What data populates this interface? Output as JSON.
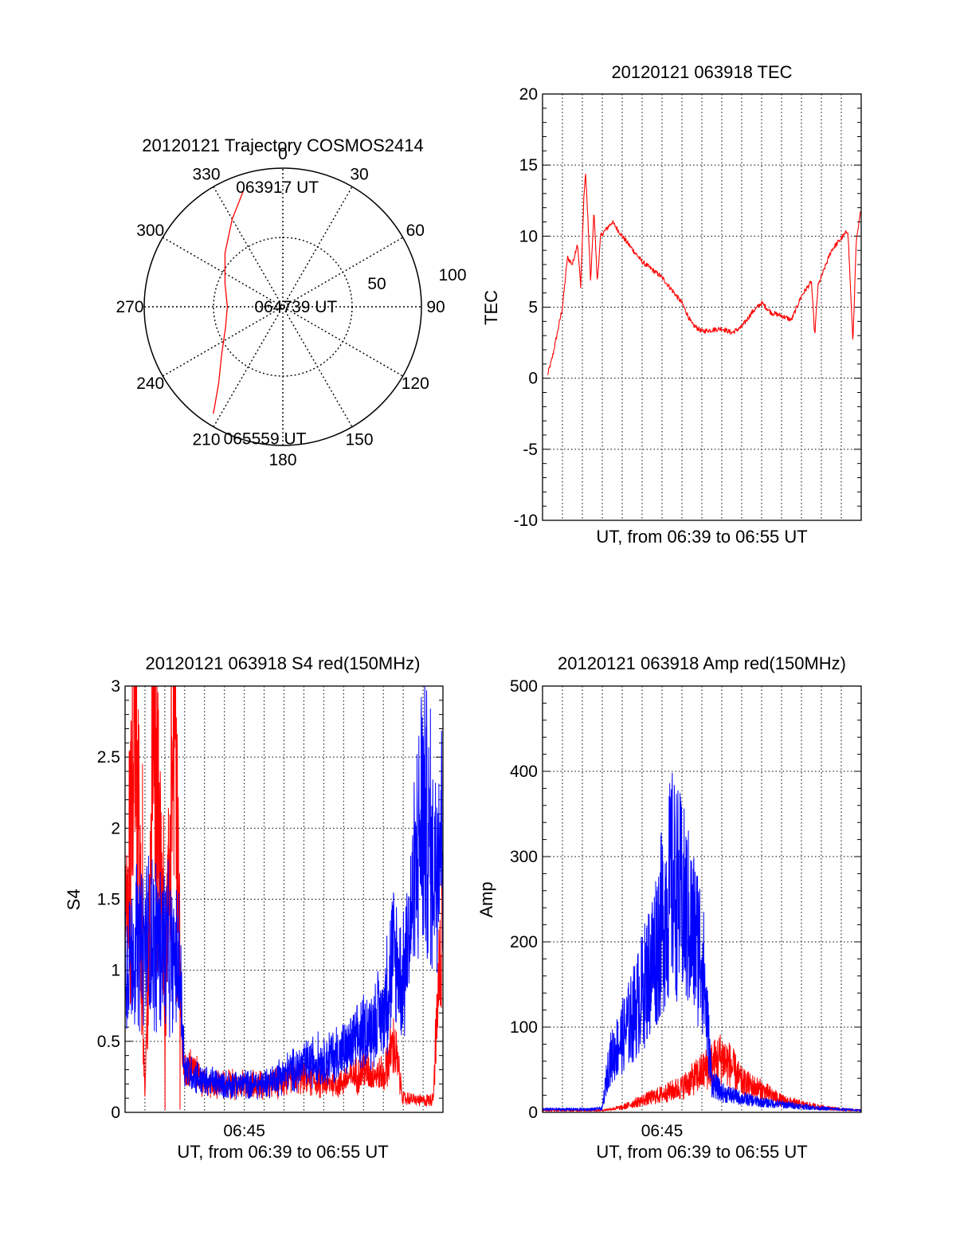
{
  "colors": {
    "red": "#ff0000",
    "blue": "#0000ff",
    "axis": "#000000",
    "grid": "#000000"
  },
  "chart_data": [
    {
      "type": "polar",
      "title": "20120121 Trajectory COSMOS2414",
      "angle_labels": [
        "0",
        "30",
        "60",
        "90",
        "120",
        "150",
        "180",
        "210",
        "240",
        "270",
        "300",
        "330"
      ],
      "radius_labels": [
        "50",
        "100"
      ],
      "radius_max": 100,
      "grid": true,
      "series": [
        {
          "color": "#ff0000",
          "points": [
            {
              "az": 341,
              "r": 88
            },
            {
              "az": 330,
              "r": 73
            },
            {
              "az": 313,
              "r": 57
            },
            {
              "az": 292,
              "r": 45
            },
            {
              "az": 270,
              "r": 40
            },
            {
              "az": 250,
              "r": 44
            },
            {
              "az": 232,
              "r": 56
            },
            {
              "az": 220,
              "r": 72
            },
            {
              "az": 213,
              "r": 92
            }
          ]
        }
      ],
      "annotations": [
        {
          "text": "063917 UT",
          "az": 348,
          "r": 88
        },
        {
          "text": "064739 UT",
          "az": 270,
          "r": 5
        },
        {
          "text": "065559 UT",
          "az": 196,
          "r": 99
        }
      ]
    },
    {
      "type": "line",
      "title": "20120121 063918 TEC",
      "xlabel": "UT, from 06:39 to 06:55 UT",
      "ylabel": "TEC",
      "xlim": [
        "06:39",
        "06:55"
      ],
      "ylim": [
        -10,
        20
      ],
      "yticks": [
        "-10",
        "-5",
        "0",
        "5",
        "10",
        "15",
        "20"
      ],
      "grid": true,
      "series": [
        {
          "color": "#ff0000",
          "points": [
            [
              "06:39:15",
              0.2
            ],
            [
              "06:39:30",
              1.5
            ],
            [
              "06:40:00",
              5
            ],
            [
              "06:40:15",
              8.5
            ],
            [
              "06:40:30",
              8
            ],
            [
              "06:40:45",
              9.5
            ],
            [
              "06:40:55",
              6.5
            ],
            [
              "06:41:05",
              13
            ],
            [
              "06:41:10",
              14.4
            ],
            [
              "06:41:15",
              12
            ],
            [
              "06:41:25",
              6.8
            ],
            [
              "06:41:35",
              11.8
            ],
            [
              "06:41:45",
              6.8
            ],
            [
              "06:41:55",
              10
            ],
            [
              "06:42:30",
              11
            ],
            [
              "06:43:00",
              10
            ],
            [
              "06:44:00",
              8.2
            ],
            [
              "06:45:00",
              7.1
            ],
            [
              "06:46:00",
              5.3
            ],
            [
              "06:46:30",
              3.8
            ],
            [
              "06:47:00",
              3.3
            ],
            [
              "06:47:30",
              3.4
            ],
            [
              "06:48:00",
              3.5
            ],
            [
              "06:48:30",
              3.2
            ],
            [
              "06:49:00",
              3.6
            ],
            [
              "06:49:30",
              4.6
            ],
            [
              "06:50:00",
              5.3
            ],
            [
              "06:50:30",
              4.6
            ],
            [
              "06:51:00",
              4.4
            ],
            [
              "06:51:30",
              4.1
            ],
            [
              "06:52:00",
              5.8
            ],
            [
              "06:52:30",
              6.8
            ],
            [
              "06:52:40",
              3
            ],
            [
              "06:52:50",
              6.5
            ],
            [
              "06:53:30",
              9
            ],
            [
              "06:54:20",
              10.4
            ],
            [
              "06:54:35",
              2.5
            ],
            [
              "06:54:45",
              9.5
            ],
            [
              "06:55:00",
              12
            ]
          ]
        }
      ]
    },
    {
      "type": "line",
      "title": "20120121 063918 S4 red(150MHz)",
      "xlabel": "UT, from 06:39 to 06:55 UT",
      "ylabel": "S4",
      "xlim": [
        "06:39",
        "06:55"
      ],
      "ylim": [
        0,
        3
      ],
      "xticks": [
        "06:45"
      ],
      "yticks": [
        "0",
        "0.5",
        "1",
        "1.5",
        "2",
        "2.5",
        "3"
      ],
      "grid": true,
      "series": [
        {
          "color": "#ff0000",
          "points": [
            [
              "06:39:00",
              1.2
            ],
            [
              "06:39:30",
              3
            ],
            [
              "06:40:00",
              0.1
            ],
            [
              "06:40:30",
              3
            ],
            [
              "06:41:00",
              0.8
            ],
            [
              "06:41:30",
              3
            ],
            [
              "06:41:50",
              0.5
            ],
            [
              "06:42:00",
              0.3
            ],
            [
              "06:42:30",
              0.3
            ],
            [
              "06:43:00",
              0.2
            ],
            [
              "06:44:00",
              0.2
            ],
            [
              "06:45:00",
              0.2
            ],
            [
              "06:46:00",
              0.2
            ],
            [
              "06:47:00",
              0.22
            ],
            [
              "06:48:00",
              0.25
            ],
            [
              "06:49:00",
              0.2
            ],
            [
              "06:50:00",
              0.22
            ],
            [
              "06:51:00",
              0.3
            ],
            [
              "06:52:00",
              0.25
            ],
            [
              "06:52:30",
              0.5
            ],
            [
              "06:53:00",
              0.1
            ],
            [
              "06:54:00",
              0.08
            ],
            [
              "06:54:30",
              0.1
            ],
            [
              "06:55:00",
              1.5
            ]
          ]
        },
        {
          "color": "#0000ff",
          "points": [
            [
              "06:39:00",
              1.1
            ],
            [
              "06:40:00",
              1.2
            ],
            [
              "06:41:00",
              1.2
            ],
            [
              "06:41:45",
              1.0
            ],
            [
              "06:42:00",
              0.3
            ],
            [
              "06:43:00",
              0.22
            ],
            [
              "06:44:00",
              0.2
            ],
            [
              "06:45:00",
              0.2
            ],
            [
              "06:46:00",
              0.2
            ],
            [
              "06:47:00",
              0.27
            ],
            [
              "06:48:00",
              0.33
            ],
            [
              "06:49:00",
              0.38
            ],
            [
              "06:50:00",
              0.42
            ],
            [
              "06:51:00",
              0.55
            ],
            [
              "06:52:00",
              0.7
            ],
            [
              "06:52:30",
              1.1
            ],
            [
              "06:53:00",
              0.9
            ],
            [
              "06:53:30",
              1.5
            ],
            [
              "06:54:00",
              2.2
            ],
            [
              "06:54:30",
              1.7
            ],
            [
              "06:55:00",
              2.2
            ]
          ]
        }
      ]
    },
    {
      "type": "line",
      "title": "20120121 063918 Amp red(150MHz)",
      "xlabel": "UT, from 06:39 to 06:55 UT",
      "ylabel": "Amp",
      "xlim": [
        "06:39",
        "06:55"
      ],
      "ylim": [
        0,
        500
      ],
      "xticks": [
        "06:45"
      ],
      "yticks": [
        "0",
        "100",
        "200",
        "300",
        "400",
        "500"
      ],
      "grid": true,
      "series": [
        {
          "color": "#ff0000",
          "points": [
            [
              "06:39:00",
              2
            ],
            [
              "06:42:00",
              2
            ],
            [
              "06:43:00",
              5
            ],
            [
              "06:44:00",
              12
            ],
            [
              "06:45:00",
              18
            ],
            [
              "06:46:00",
              25
            ],
            [
              "06:47:00",
              40
            ],
            [
              "06:48:00",
              55
            ],
            [
              "06:48:30",
              45
            ],
            [
              "06:49:00",
              30
            ],
            [
              "06:50:00",
              22
            ],
            [
              "06:51:00",
              12
            ],
            [
              "06:52:00",
              8
            ],
            [
              "06:53:00",
              5
            ],
            [
              "06:54:00",
              3
            ],
            [
              "06:55:00",
              2
            ]
          ]
        },
        {
          "color": "#0000ff",
          "points": [
            [
              "06:39:00",
              3
            ],
            [
              "06:41:30",
              3
            ],
            [
              "06:42:00",
              4
            ],
            [
              "06:42:20",
              50
            ],
            [
              "06:43:00",
              75
            ],
            [
              "06:43:30",
              95
            ],
            [
              "06:44:00",
              120
            ],
            [
              "06:44:30",
              150
            ],
            [
              "06:45:00",
              190
            ],
            [
              "06:45:30",
              230
            ],
            [
              "06:46:00",
              210
            ],
            [
              "06:46:30",
              180
            ],
            [
              "06:47:00",
              160
            ],
            [
              "06:47:30",
              30
            ],
            [
              "06:48:00",
              20
            ],
            [
              "06:49:00",
              14
            ],
            [
              "06:50:00",
              10
            ],
            [
              "06:51:00",
              8
            ],
            [
              "06:52:00",
              6
            ],
            [
              "06:53:00",
              4
            ],
            [
              "06:54:00",
              3
            ],
            [
              "06:55:00",
              2
            ]
          ]
        }
      ]
    }
  ]
}
